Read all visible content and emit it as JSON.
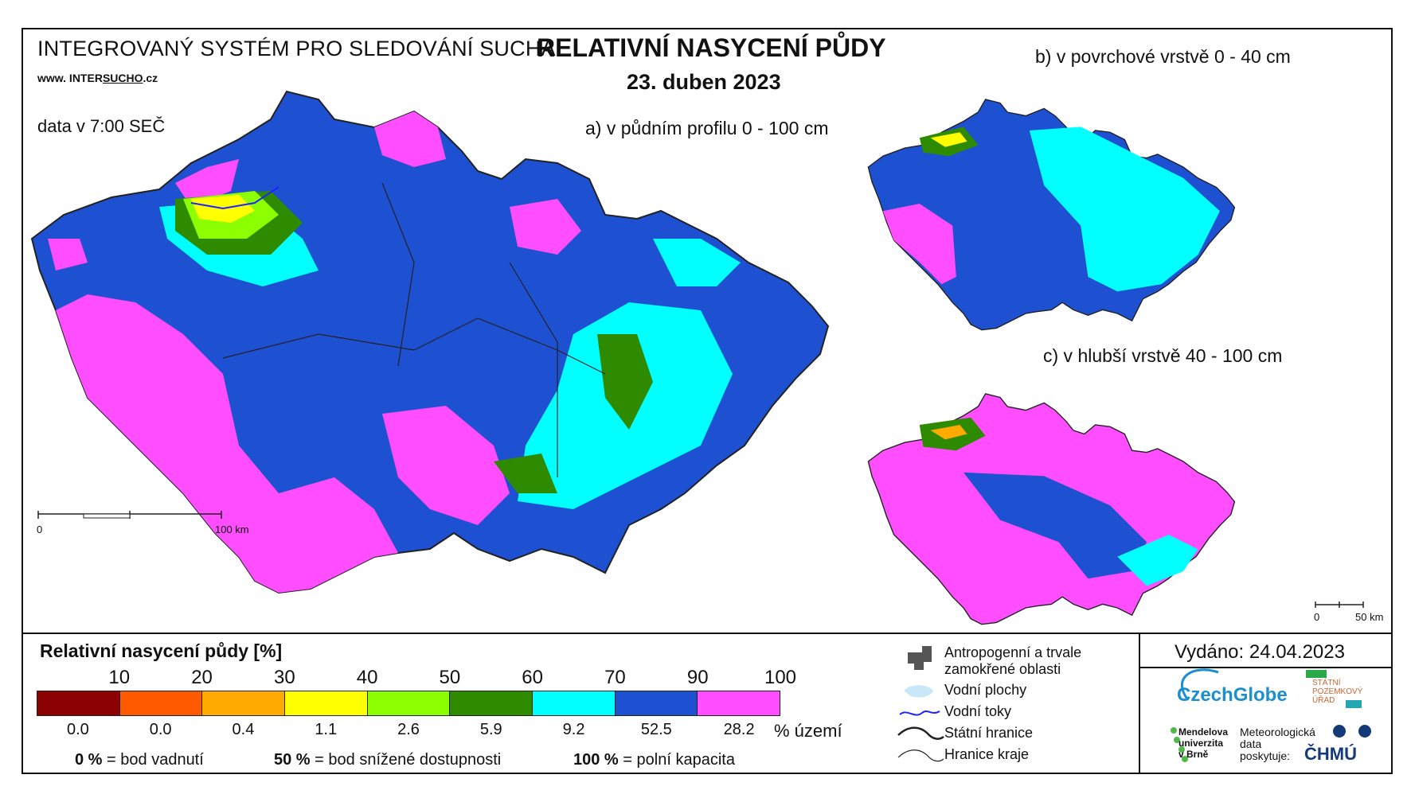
{
  "header": {
    "system_title": "INTEGROVANÝ SYSTÉM PRO SLEDOVÁNÍ SUCHA",
    "website_prefix": "www. INTER",
    "website_accent": "SUCHO",
    "website_suffix": ".cz",
    "data_time": "data v 7:00 SEČ",
    "main_title": "RELATIVNÍ NASYCENÍ PŮDY",
    "date": "23. duben 2023"
  },
  "maps": {
    "a_label": "a) v půdním profilu 0 - 100 cm",
    "b_label": "b) v povrchové vrstvě 0 - 40 cm",
    "c_label": "c) v hlubší vrstvě 40 - 100 cm",
    "scale_a": {
      "start": "0",
      "end": "100 km"
    },
    "scale_small": {
      "start": "0",
      "end": "50 km"
    }
  },
  "legend": {
    "title": "Relativní nasycení půdy [%]",
    "ticks": [
      "10",
      "20",
      "30",
      "40",
      "50",
      "60",
      "70",
      "90",
      "100"
    ],
    "classes": [
      {
        "color": "#8b0000",
        "pct": "0.0"
      },
      {
        "color": "#ff5a00",
        "pct": "0.0"
      },
      {
        "color": "#ffaa00",
        "pct": "0.4"
      },
      {
        "color": "#ffff00",
        "pct": "1.1"
      },
      {
        "color": "#8cff00",
        "pct": "2.6"
      },
      {
        "color": "#2e8b00",
        "pct": "5.9"
      },
      {
        "color": "#00ffff",
        "pct": "9.2"
      },
      {
        "color": "#1e50d2",
        "pct": "52.5"
      },
      {
        "color": "#ff4dff",
        "pct": "28.2"
      }
    ],
    "pct_unit": "% území",
    "notes": [
      {
        "value": "0 %",
        "text": "= bod vadnutí"
      },
      {
        "value": "50 %",
        "text": "= bod snížené dostupnosti"
      },
      {
        "value": "100 %",
        "text": "= polní kapacita"
      }
    ]
  },
  "symbols": {
    "items": [
      {
        "icon": "anthropogenic-area-icon",
        "label_line1": "Antropogenní a trvale",
        "label_line2": "zamokřené oblasti"
      },
      {
        "icon": "water-area-icon",
        "label_line1": "Vodní plochy"
      },
      {
        "icon": "river-icon",
        "label_line1": "Vodní toky"
      },
      {
        "icon": "state-border-icon",
        "label_line1": "Státní hranice"
      },
      {
        "icon": "region-border-icon",
        "label_line1": "Hranice kraje"
      }
    ]
  },
  "issued": "Vydáno: 24.04.2023",
  "logos": {
    "czechglobe": "CzechGlobe",
    "spu": [
      "STÁTNÍ",
      "POZEMKOVÝ",
      "ÚŘAD"
    ],
    "mendel": [
      "Mendelova",
      "univerzita",
      "v Brně"
    ],
    "meteo": [
      "Meteorologická",
      "data",
      "poskytuje:"
    ],
    "chmu": "ČHMÚ"
  },
  "colors": {
    "wet": "#ff4dff",
    "moist": "#1e50d2",
    "cyan": "#00ffff",
    "green": "#2e8b00",
    "lightgreen": "#8cff00",
    "yellow": "#ffff00"
  }
}
